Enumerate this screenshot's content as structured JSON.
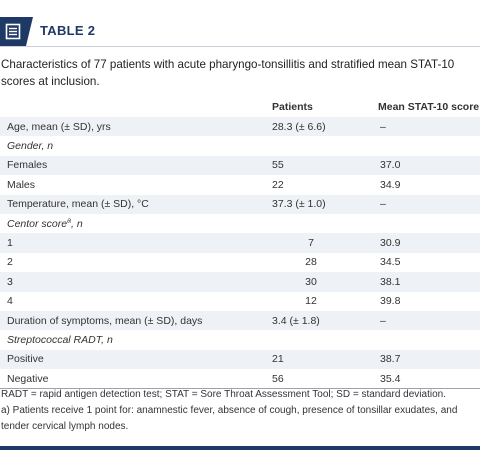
{
  "header": {
    "title": "TABLE 2",
    "icon": "document-icon"
  },
  "caption": "Characteristics of 77 patients with acute pharyngo-tonsillitis and stratified mean STAT-10 scores at inclusion.",
  "columns": [
    "",
    "Patients",
    "Mean STAT-10 score"
  ],
  "rows": [
    {
      "label": "Age, mean (± SD), yrs",
      "patients": "28.3 (± 6.6)",
      "score": "–"
    },
    {
      "label": "Gender, n",
      "patients": "",
      "score": ""
    },
    {
      "label": "Females",
      "patients": "55",
      "score": "37.0"
    },
    {
      "label": "Males",
      "patients": "22",
      "score": "34.9"
    },
    {
      "label": "Temperature, mean (± SD), °C",
      "patients": "37.3 (± 1.0)",
      "score": "–"
    },
    {
      "label": "Centor score",
      "label_sup": "a",
      "label_suffix": ", n",
      "patients": "",
      "score": ""
    },
    {
      "label": "1",
      "patients": "7",
      "score": "30.9"
    },
    {
      "label": "2",
      "patients": "28",
      "score": "34.5"
    },
    {
      "label": "3",
      "patients": "30",
      "score": "38.1"
    },
    {
      "label": "4",
      "patients": "12",
      "score": "39.8"
    },
    {
      "label": "Duration of symptoms, mean (± SD), days",
      "patients": "3.4 (± 1.8)",
      "score": "–"
    },
    {
      "label": "Streptococcal RADT, n",
      "patients": "",
      "score": ""
    },
    {
      "label": "Positive",
      "patients": "21",
      "score": "38.7"
    },
    {
      "label": "Negative",
      "patients": "56",
      "score": "35.4"
    }
  ],
  "footnotes": [
    "RADT = rapid antigen detection test; STAT = Sore Throat Assessment Tool; SD = standard deviation.",
    "a) Patients receive 1 point for: anamnestic fever, absence of cough, presence of tonsillar exudates, and tender cervical lymph nodes."
  ]
}
